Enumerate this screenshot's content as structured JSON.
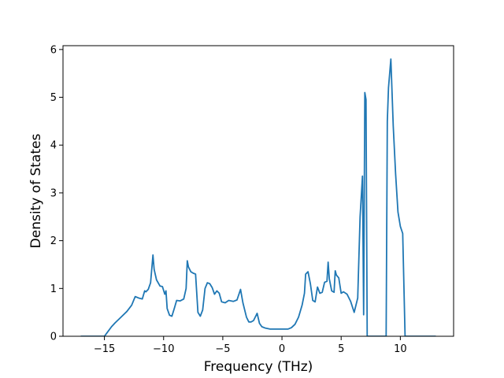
{
  "chart_data": {
    "type": "line",
    "title": "",
    "xlabel": "Frequency (THz)",
    "ylabel": "Density of States",
    "xlim": [
      -18.5,
      14.5
    ],
    "ylim": [
      0,
      6.08
    ],
    "xticks": [
      -15,
      -10,
      -5,
      0,
      5,
      10
    ],
    "xtick_labels": [
      "−15",
      "−10",
      "−5",
      "0",
      "5",
      "10"
    ],
    "yticks": [
      0,
      1,
      2,
      3,
      4,
      5,
      6
    ],
    "ytick_labels": [
      "0",
      "1",
      "2",
      "3",
      "4",
      "5",
      "6"
    ],
    "grid": false,
    "legend": "none",
    "series": [
      {
        "color": "#1f77b4",
        "x": [
          -17.0,
          -15.0,
          -14.7,
          -14.4,
          -14.1,
          -13.6,
          -13.1,
          -12.7,
          -12.4,
          -12.1,
          -11.8,
          -11.6,
          -11.5,
          -11.3,
          -11.1,
          -10.9,
          -10.8,
          -10.6,
          -10.3,
          -10.1,
          -9.9,
          -9.8,
          -9.7,
          -9.5,
          -9.3,
          -9.1,
          -8.9,
          -8.6,
          -8.3,
          -8.1,
          -8.0,
          -7.9,
          -7.7,
          -7.5,
          -7.3,
          -7.1,
          -6.9,
          -6.7,
          -6.5,
          -6.3,
          -6.1,
          -5.9,
          -5.7,
          -5.5,
          -5.3,
          -5.1,
          -4.8,
          -4.5,
          -4.1,
          -3.8,
          -3.5,
          -3.3,
          -3.0,
          -2.8,
          -2.6,
          -2.4,
          -2.1,
          -1.9,
          -1.7,
          -1.4,
          -1.0,
          -0.5,
          0.0,
          0.5,
          0.8,
          1.1,
          1.4,
          1.7,
          1.9,
          2.0,
          2.2,
          2.4,
          2.6,
          2.8,
          3.0,
          3.2,
          3.4,
          3.6,
          3.8,
          3.9,
          4.0,
          4.2,
          4.4,
          4.5,
          4.6,
          4.8,
          5.0,
          5.2,
          5.5,
          5.8,
          6.1,
          6.4,
          6.6,
          6.8,
          6.9,
          7.0,
          7.1,
          7.2,
          7.3,
          7.6,
          8.0,
          8.4,
          8.8,
          8.9,
          9.0,
          9.1,
          9.2,
          9.4,
          9.6,
          9.8,
          10.0,
          10.2,
          10.4,
          10.6,
          11.0,
          12.0,
          13.0
        ],
        "y": [
          0.0,
          0.0,
          0.1,
          0.2,
          0.28,
          0.4,
          0.52,
          0.65,
          0.83,
          0.8,
          0.78,
          0.95,
          0.93,
          0.98,
          1.12,
          1.7,
          1.4,
          1.18,
          1.05,
          1.04,
          0.88,
          0.95,
          0.58,
          0.44,
          0.42,
          0.58,
          0.75,
          0.74,
          0.78,
          1.0,
          1.58,
          1.45,
          1.35,
          1.32,
          1.3,
          0.5,
          0.42,
          0.55,
          1.0,
          1.12,
          1.1,
          1.02,
          0.88,
          0.95,
          0.9,
          0.72,
          0.7,
          0.75,
          0.73,
          0.76,
          0.98,
          0.7,
          0.4,
          0.3,
          0.3,
          0.33,
          0.48,
          0.27,
          0.2,
          0.17,
          0.15,
          0.15,
          0.15,
          0.15,
          0.18,
          0.25,
          0.4,
          0.65,
          0.9,
          1.3,
          1.35,
          1.1,
          0.75,
          0.72,
          1.03,
          0.9,
          0.92,
          1.13,
          1.15,
          1.55,
          1.2,
          0.95,
          0.92,
          1.37,
          1.28,
          1.22,
          0.9,
          0.93,
          0.88,
          0.73,
          0.5,
          0.8,
          2.5,
          3.35,
          0.45,
          5.1,
          4.95,
          0.0,
          0.0,
          0.0,
          0.0,
          0.0,
          0.0,
          4.5,
          5.2,
          5.5,
          5.8,
          4.4,
          3.4,
          2.6,
          2.3,
          2.15,
          0.0,
          0.0,
          0.0,
          0.0,
          0.0
        ]
      }
    ]
  }
}
